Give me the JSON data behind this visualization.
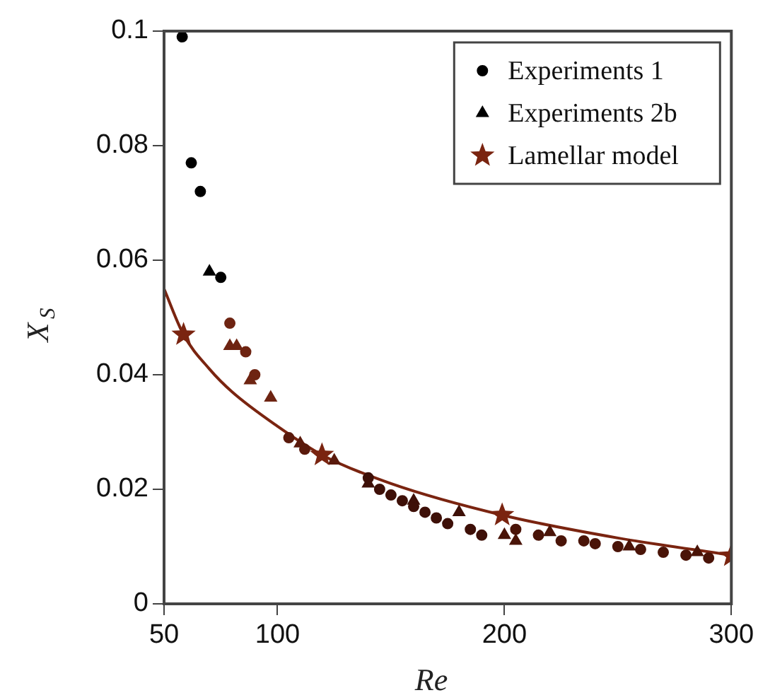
{
  "chart_data": {
    "type": "scatter",
    "xlabel": "Re",
    "ylabel": "X$_{S}$",
    "xlim": [
      50,
      300
    ],
    "xticks": [
      50,
      100,
      200,
      300
    ],
    "ylim": [
      0,
      0.1
    ],
    "yticks": [
      0,
      0.02,
      0.04,
      0.06,
      0.08,
      0.1
    ],
    "grid": false,
    "legend": "top right",
    "series": [
      {
        "name": "Experiments 1",
        "marker": "circle",
        "color": "#000000",
        "x": [
          58,
          62,
          66,
          75,
          79,
          86,
          90,
          105,
          112,
          140,
          145,
          150,
          155,
          160,
          165,
          170,
          175,
          185,
          190,
          205,
          215,
          225,
          235,
          240,
          250,
          260,
          270,
          280,
          290
        ],
        "values": [
          0.099,
          0.077,
          0.072,
          0.057,
          0.049,
          0.044,
          0.04,
          0.029,
          0.027,
          0.022,
          0.02,
          0.019,
          0.018,
          0.017,
          0.016,
          0.015,
          0.014,
          0.013,
          0.012,
          0.013,
          0.012,
          0.011,
          0.011,
          0.0105,
          0.01,
          0.0095,
          0.009,
          0.0085,
          0.008
        ],
        "colors": [
          "#000000",
          "#000000",
          "#000000",
          "#000000",
          "#6e2412",
          "#6e2412",
          "#6e2412",
          "#5a1a0c",
          "#5a1a0c",
          "#3e1008",
          "#3e1008",
          "#3e1008",
          "#3e1008",
          "#3e1008",
          "#3e1008",
          "#3e1008",
          "#3e1008",
          "#3e1008",
          "#3e1008",
          "#4a1408",
          "#4a1408",
          "#4a1408",
          "#4a1408",
          "#4a1408",
          "#4a1408",
          "#4a1408",
          "#4a1408",
          "#4a1408",
          "#4a1408"
        ]
      },
      {
        "name": "Experiments 2b",
        "marker": "triangle",
        "color": "#000000",
        "x": [
          70,
          79,
          82,
          88,
          97,
          110,
          125,
          140,
          160,
          180,
          200,
          205,
          220,
          255,
          285
        ],
        "values": [
          0.058,
          0.045,
          0.045,
          0.039,
          0.036,
          0.028,
          0.025,
          0.021,
          0.018,
          0.016,
          0.012,
          0.011,
          0.0125,
          0.01,
          0.009
        ],
        "colors": [
          "#000000",
          "#6e2412",
          "#6e2412",
          "#6e2412",
          "#6e2412",
          "#5a1a0c",
          "#5a1a0c",
          "#3e1008",
          "#3e1008",
          "#3e1008",
          "#4a1408",
          "#4a1408",
          "#4a1408",
          "#4a1408",
          "#4a1408"
        ]
      },
      {
        "name": "Lamellar model",
        "marker": "star",
        "color": "#7a2410",
        "x": [
          58.6,
          119.6,
          199,
          300
        ],
        "values": [
          0.047,
          0.026,
          0.0155,
          0.0084
        ]
      },
      {
        "type": "line",
        "marker": "none",
        "color": "#7a2410",
        "x": [
          50,
          58.6,
          70,
          80,
          100,
          119.6,
          150,
          199,
          250,
          300
        ],
        "values": [
          0.055,
          0.047,
          0.041,
          0.037,
          0.031,
          0.026,
          0.021,
          0.0155,
          0.0115,
          0.0085
        ]
      }
    ]
  }
}
